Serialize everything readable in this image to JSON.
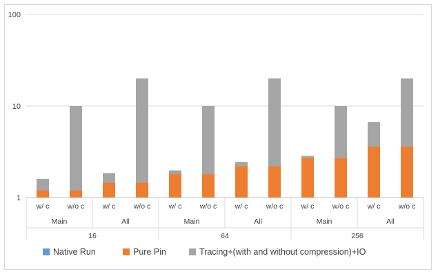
{
  "chart_data": {
    "type": "bar",
    "stacked": true,
    "yscale": "log",
    "ylim": [
      1,
      100
    ],
    "yticks": [
      "1",
      "10",
      "100"
    ],
    "grid": true,
    "legend_position": "bottom",
    "title": "",
    "xlabel": "",
    "ylabel": "",
    "categories": [
      "w/ c",
      "w/o c",
      "w/ c",
      "w/o c",
      "w/ c",
      "w/o c",
      "w/ c",
      "w/o c",
      "w/ c",
      "w/o c",
      "w/ c",
      "w/o c"
    ],
    "groups_level2": [
      "Main",
      "All",
      "Main",
      "All",
      "Main",
      "All"
    ],
    "groups_level1": [
      "16",
      "64",
      "256"
    ],
    "series": [
      {
        "name": "Native Run",
        "color": "#5b9bd5",
        "values": [
          1,
          1,
          1,
          1,
          1,
          1,
          1,
          1,
          1,
          1,
          1,
          1
        ]
      },
      {
        "name": "Pure Pin",
        "color": "#ed7d31",
        "values": [
          1.2,
          1.2,
          1.45,
          1.45,
          1.8,
          1.8,
          2.2,
          2.2,
          2.7,
          2.7,
          3.6,
          3.6
        ]
      },
      {
        "name": "Tracing+(with and without compression)+IO",
        "color": "#a5a5a5",
        "values": [
          1.6,
          10,
          1.85,
          20,
          1.98,
          10,
          2.45,
          20,
          2.85,
          10,
          6.7,
          20
        ]
      }
    ]
  }
}
